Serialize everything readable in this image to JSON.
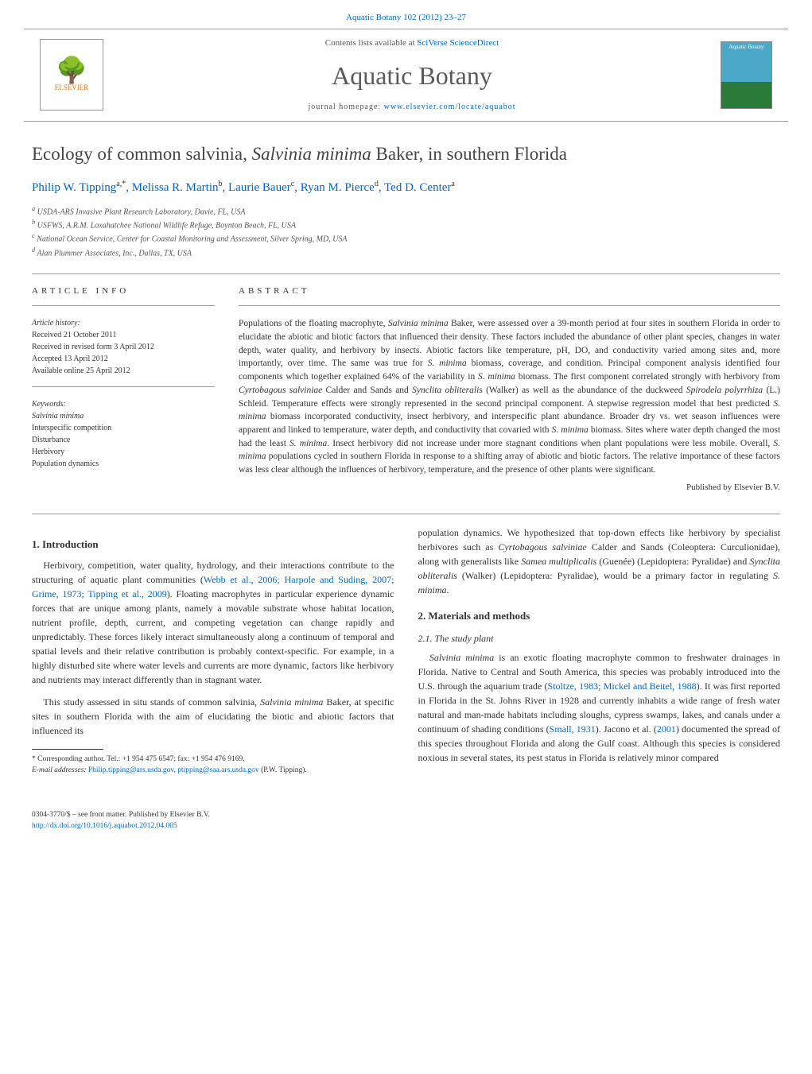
{
  "header": {
    "journal_ref": "Aquatic Botany 102 (2012) 23–27",
    "contents_prefix": "Contents lists available at ",
    "contents_link": "SciVerse ScienceDirect",
    "journal_title": "Aquatic Botany",
    "homepage_prefix": "journal homepage: ",
    "homepage_link": "www.elsevier.com/locate/aquabot",
    "elsevier_name": "ELSEVIER",
    "cover_label": "Aquatic Botany"
  },
  "article": {
    "title_pre": "Ecology of common salvinia, ",
    "title_species": "Salvinia minima",
    "title_post": " Baker, in southern Florida",
    "authors_html": "Philip W. Tipping<sup>a,*</sup>, Melissa R. Martin<sup>b</sup>, Laurie Bauer<sup>c</sup>, Ryan M. Pierce<sup>d</sup>, Ted D. Center<sup>a</sup>",
    "affiliations": [
      "a USDA-ARS Invasive Plant Research Laboratory, Davie, FL, USA",
      "b USFWS, A.R.M. Loxahatchee National Wildlife Refuge, Boynton Beach, FL, USA",
      "c National Ocean Service, Center for Coastal Monitoring and Assessment, Silver Spring, MD, USA",
      "d Alan Plummer Associates, Inc., Dallas, TX, USA"
    ]
  },
  "info": {
    "head": "article info",
    "history_label": "Article history:",
    "history": [
      "Received 21 October 2011",
      "Received in revised form 3 April 2012",
      "Accepted 13 April 2012",
      "Available online 25 April 2012"
    ],
    "keywords_label": "Keywords:",
    "keywords": [
      "Salvinia minima",
      "Interspecific competition",
      "Disturbance",
      "Herbivory",
      "Population dynamics"
    ]
  },
  "abstract": {
    "head": "abstract",
    "text": "Populations of the floating macrophyte, Salvinia minima Baker, were assessed over a 39-month period at four sites in southern Florida in order to elucidate the abiotic and biotic factors that influenced their density. These factors included the abundance of other plant species, changes in water depth, water quality, and herbivory by insects. Abiotic factors like temperature, pH, DO, and conductivity varied among sites and, more importantly, over time. The same was true for S. minima biomass, coverage, and condition. Principal component analysis identified four components which together explained 64% of the variability in S. minima biomass. The first component correlated strongly with herbivory from Cyrtobagous salviniae Calder and Sands and Synclita obliteralis (Walker) as well as the abundance of the duckweed Spirodela polyrrhiza (L.) Schleid. Temperature effects were strongly represented in the second principal component. A stepwise regression model that best predicted S. minima biomass incorporated conductivity, insect herbivory, and interspecific plant abundance. Broader dry vs. wet season influences were apparent and linked to temperature, water depth, and conductivity that covaried with S. minima biomass. Sites where water depth changed the most had the least S. minima. Insect herbivory did not increase under more stagnant conditions when plant populations were less mobile. Overall, S. minima populations cycled in southern Florida in response to a shifting array of abiotic and biotic factors. The relative importance of these factors was less clear although the influences of herbivory, temperature, and the presence of other plants were significant.",
    "published_by": "Published by Elsevier B.V."
  },
  "body": {
    "intro_head": "1. Introduction",
    "intro_p1": "Herbivory, competition, water quality, hydrology, and their interactions contribute to the structuring of aquatic plant communities (Webb et al., 2006; Harpole and Suding, 2007; Grime, 1973; Tipping et al., 2009). Floating macrophytes in particular experience dynamic forces that are unique among plants, namely a movable substrate whose habitat location, nutrient profile, depth, current, and competing vegetation can change rapidly and unpredictably. These forces likely interact simultaneously along a continuum of temporal and spatial levels and their relative contribution is probably context-specific. For example, in a highly disturbed site where water levels and currents are more dynamic, factors like herbivory and nutrients may interact differently than in stagnant water.",
    "intro_p2": "This study assessed in situ stands of common salvinia, Salvinia minima Baker, at specific sites in southern Florida with the aim of elucidating the biotic and abiotic factors that influenced its",
    "right_p1": "population dynamics. We hypothesized that top-down effects like herbivory by specialist herbivores such as Cyrtobagous salviniae Calder and Sands (Coleoptera: Curculionidae), along with generalists like Samea multiplicalis (Guenée) (Lepidoptera: Pyralidae) and Synclita obliteralis (Walker) (Lepidoptera: Pyralidae), would be a primary factor in regulating S. minima.",
    "methods_head": "2. Materials and methods",
    "study_plant_head": "2.1. The study plant",
    "study_plant_p": "Salvinia minima is an exotic floating macrophyte common to freshwater drainages in Florida. Native to Central and South America, this species was probably introduced into the U.S. through the aquarium trade (Stoltze, 1983; Mickel and Beitel, 1988). It was first reported in Florida in the St. Johns River in 1928 and currently inhabits a wide range of fresh water natural and man-made habitats including sloughs, cypress swamps, lakes, and canals under a continuum of shading conditions (Small, 1931). Jacono et al. (2001) documented the spread of this species throughout Florida and along the Gulf coast. Although this species is considered noxious in several states, its pest status in Florida is relatively minor compared"
  },
  "footnotes": {
    "corr": "* Corresponding author. Tel.: +1 954 475 6547; fax: +1 954 476 9169.",
    "email_label": "E-mail addresses: ",
    "email1": "Philip.tipping@ars.usda.gov",
    "email_sep": ", ",
    "email2": "ptipping@saa.ars.usda.gov",
    "email_post": " (P.W. Tipping)."
  },
  "footer": {
    "issn": "0304-3770/$ – see front matter. Published by Elsevier B.V.",
    "doi_link": "http://dx.doi.org/10.1016/j.aquabot.2012.04.005"
  },
  "style": {
    "link_color": "#0066cc",
    "text_color": "#333333",
    "banner_border": "#999999",
    "title_color": "#5a5a5a",
    "body_font_size": 12,
    "abstract_font_size": 11.5,
    "info_font_size": 10,
    "journal_title_size": 32,
    "article_title_size": 23
  }
}
